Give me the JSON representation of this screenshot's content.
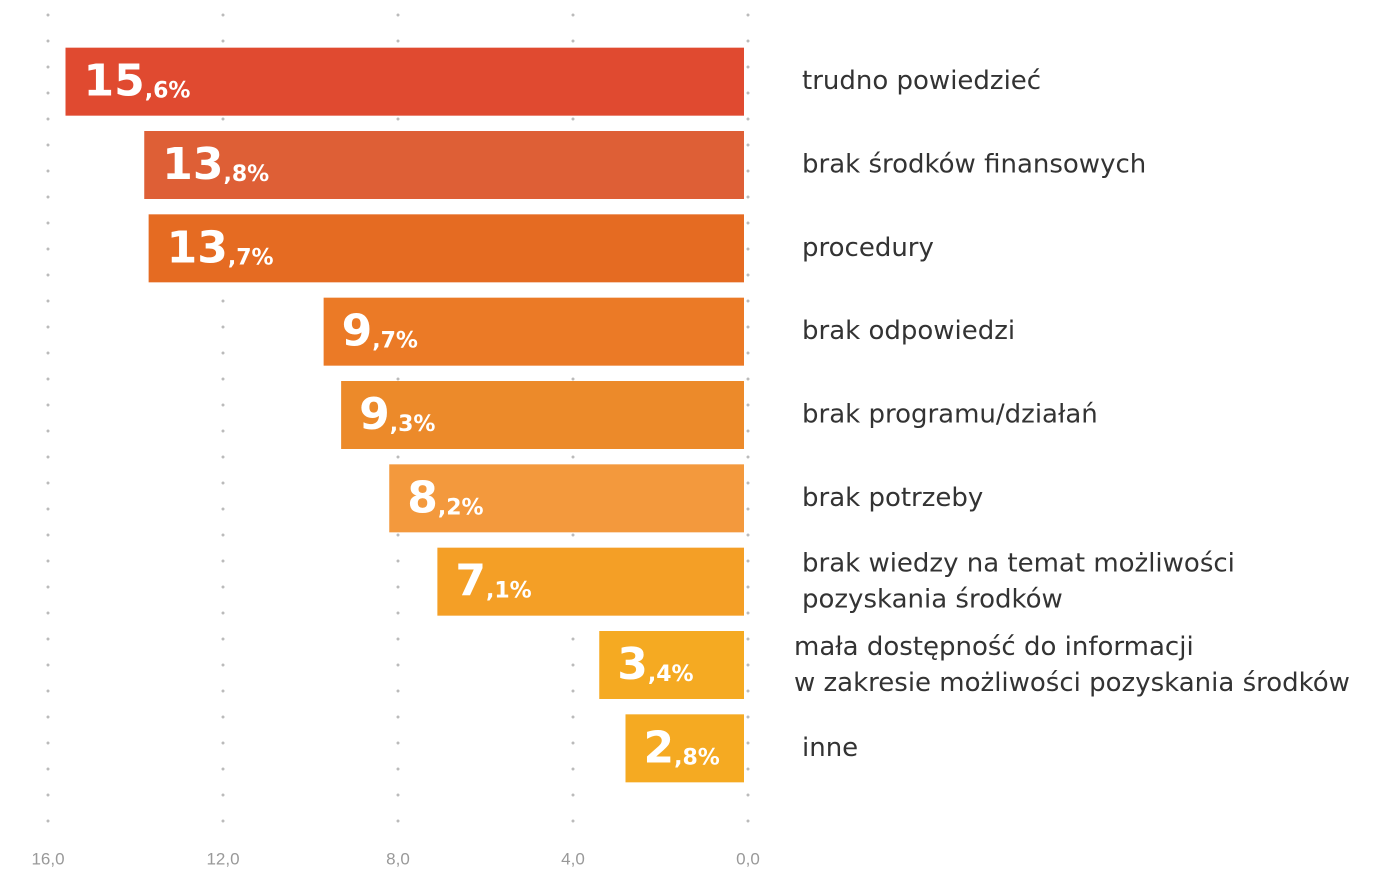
{
  "chart_data": {
    "type": "bar",
    "orientation": "horizontal",
    "categories": [
      "trudno powiedzieć",
      "brak środków finansowych",
      "procedury",
      "brak odpowiedzi",
      "brak programu/działań",
      "brak potrzeby",
      "brak wiedzy na temat możliwości\npozyskania środków",
      "mała dostępność do informacji\nw zakresie możliwości pozyskania środków",
      "inne"
    ],
    "values": [
      15.6,
      13.8,
      13.7,
      9.7,
      9.3,
      8.2,
      7.1,
      3.4,
      2.8
    ],
    "value_labels": [
      "15,6%",
      "13,8%",
      "13,7%",
      "9,7%",
      "9,3%",
      "8,2%",
      "7,1%",
      "3,4%",
      "2,8%"
    ],
    "colors": [
      "#e04a30",
      "#de5f36",
      "#e56b22",
      "#eb7a26",
      "#ec8a2a",
      "#f3993d",
      "#f49f26",
      "#f5aa22",
      "#f5aa22"
    ],
    "xlim": [
      16,
      0
    ],
    "xticks": [
      {
        "value": 16,
        "label": "16,0"
      },
      {
        "value": 12,
        "label": "12,0"
      },
      {
        "value": 8,
        "label": "8,0"
      },
      {
        "value": 4,
        "label": "4,0"
      },
      {
        "value": 0,
        "label": "0,0"
      }
    ],
    "grid": true
  }
}
